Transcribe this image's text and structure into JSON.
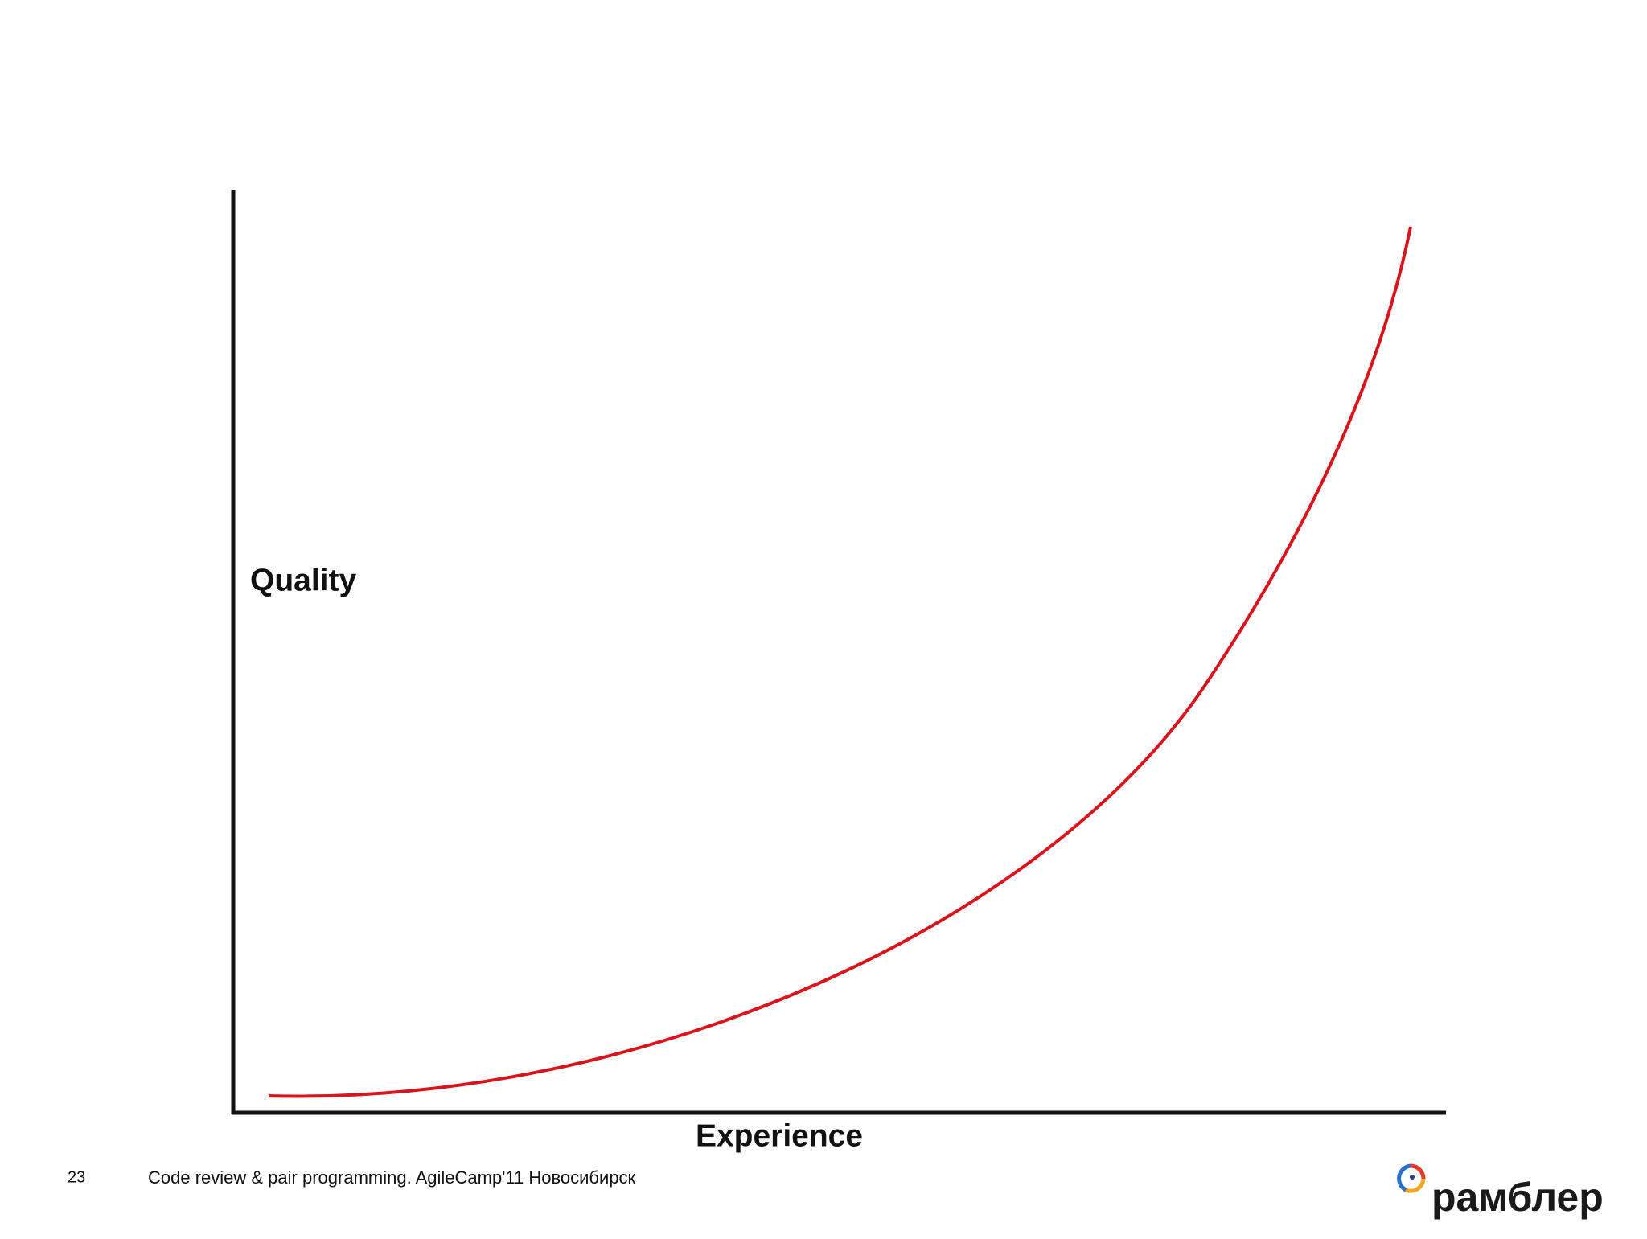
{
  "chart": {
    "y_label": "Quality",
    "x_label": "Experience"
  },
  "footer": {
    "page_number": "23",
    "text": "Code review & pair programming. AgileCamp'11 Новосибирск",
    "logo": "рамблер"
  }
}
